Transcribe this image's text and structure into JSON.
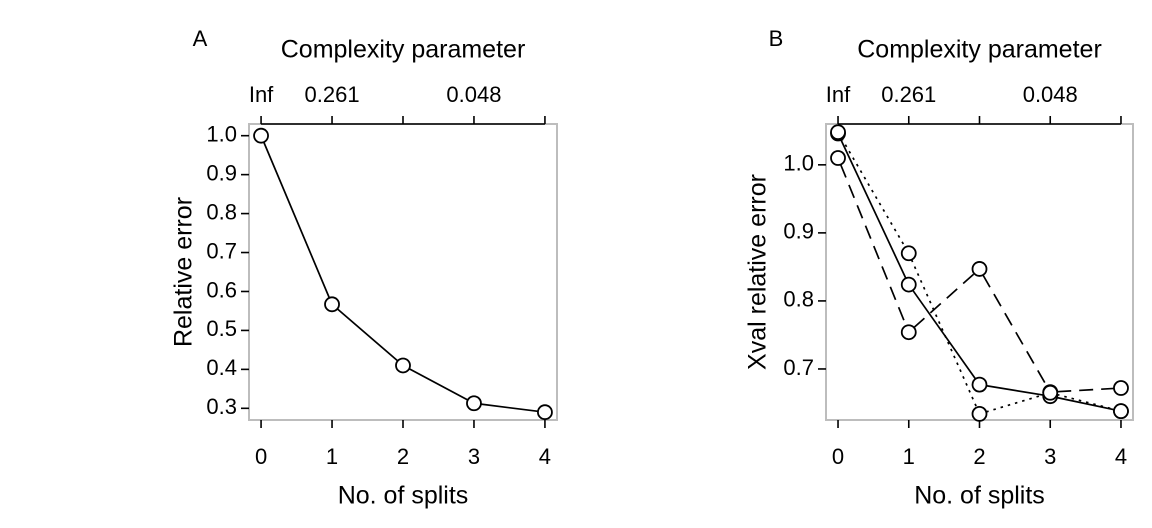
{
  "chart_data": [
    {
      "type": "line",
      "panel_label": "A",
      "top_axis_title": "Complexity parameter",
      "top_tick_labels": [
        {
          "x": 0,
          "label": "Inf"
        },
        {
          "x": 1,
          "label": "0.261"
        },
        {
          "x": 3,
          "label": "0.048"
        }
      ],
      "top_tick_positions": [
        0,
        1,
        2,
        3,
        4
      ],
      "xlabel": "No. of splits",
      "ylabel": "Relative error",
      "x_ticks": [
        0,
        1,
        2,
        3,
        4
      ],
      "y_ticks": [
        1.0,
        0.9,
        0.8,
        0.7,
        0.6,
        0.5,
        0.4,
        0.3
      ],
      "y_tick_labels": [
        "1.0",
        "0.9",
        "0.8",
        "0.7",
        "0.6",
        "0.5",
        "0.4",
        "0.3"
      ],
      "xlim": [
        -0.17,
        4.17
      ],
      "ylim": [
        0.27,
        1.03
      ],
      "series": [
        {
          "style": "solid",
          "x": [
            0,
            1,
            2,
            3,
            4
          ],
          "y": [
            1.0,
            0.567,
            0.41,
            0.313,
            0.29
          ]
        }
      ]
    },
    {
      "type": "line",
      "panel_label": "B",
      "top_axis_title": "Complexity parameter",
      "top_tick_labels": [
        {
          "x": 0,
          "label": "Inf"
        },
        {
          "x": 1,
          "label": "0.261"
        },
        {
          "x": 3,
          "label": "0.048"
        }
      ],
      "top_tick_positions": [
        0,
        1,
        2,
        3,
        4
      ],
      "xlabel": "No. of splits",
      "ylabel": "Xval relative error",
      "x_ticks": [
        0,
        1,
        2,
        3,
        4
      ],
      "y_ticks": [
        1.0,
        0.9,
        0.8,
        0.7
      ],
      "y_tick_labels": [
        "1.0",
        "0.9",
        "0.8",
        "0.7"
      ],
      "xlim": [
        -0.17,
        4.17
      ],
      "ylim": [
        0.625,
        1.06
      ],
      "series": [
        {
          "style": "solid",
          "x": [
            0,
            1,
            2,
            3,
            4
          ],
          "y": [
            1.046,
            0.824,
            0.677,
            0.66,
            0.638
          ]
        },
        {
          "style": "dashed",
          "x": [
            0,
            1,
            2,
            3,
            4
          ],
          "y": [
            1.01,
            0.754,
            0.847,
            0.666,
            0.672
          ]
        },
        {
          "style": "dotted",
          "x": [
            0,
            1,
            2,
            3,
            4
          ],
          "y": [
            1.048,
            0.87,
            0.634,
            0.665,
            0.638
          ]
        }
      ]
    }
  ]
}
